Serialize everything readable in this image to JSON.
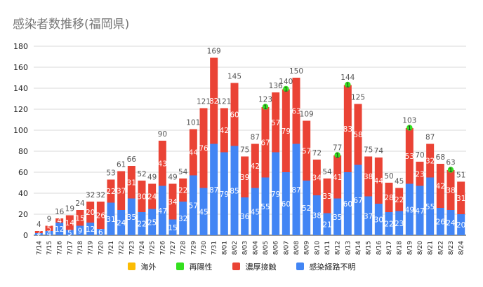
{
  "title": "感染者数推移(福岡県)",
  "chart_data": {
    "type": "bar",
    "stacked": true,
    "title": "感染者数推移(福岡県)",
    "ylim": [
      0,
      180
    ],
    "yticks": [
      0,
      20,
      40,
      60,
      80,
      100,
      120,
      140,
      160,
      180
    ],
    "grid": true,
    "legend_position": "bottom",
    "categories": [
      "7/14",
      "7/15",
      "7/16",
      "7/17",
      "7/18",
      "7/19",
      "7/20",
      "7/21",
      "7/22",
      "7/23",
      "7/24",
      "7/25",
      "7/26",
      "7/27",
      "7/28",
      "7/29",
      "7/30",
      "7/31",
      "8/01",
      "8/02",
      "8/03",
      "8/04",
      "8/05",
      "8/06",
      "8/07",
      "8/08",
      "8/09",
      "8/10",
      "8/11",
      "8/12",
      "8/13",
      "8/14",
      "8/15",
      "8/16",
      "8/17",
      "8/18",
      "8/19",
      "8/20",
      "8/21",
      "8/22",
      "8/23",
      "8/24"
    ],
    "x_tick_labels": [
      "7/14",
      "7/15",
      "7/16",
      "7/17",
      "7/18",
      "7/19",
      "7/20",
      "7/21",
      "7/22",
      "7/23",
      "7/24",
      "7/25",
      "7/26",
      "7/27",
      "7/28",
      "7/29",
      "7/30",
      "7/31",
      "8/01",
      "8/02",
      "8/03",
      "8/04",
      "8/05",
      "8/06",
      "8/07",
      "8/08",
      "8/09",
      "8/10",
      "8/11",
      "8/12",
      "8/13",
      "8/14",
      "8/15",
      "8/16",
      "8/17",
      "8/18",
      "8/19",
      "8/20",
      "8/21",
      "8/22",
      "8/23",
      "8/24"
    ],
    "totals": [
      4,
      9,
      16,
      19,
      24,
      32,
      32,
      53,
      61,
      66,
      52,
      49,
      90,
      49,
      54,
      101,
      121,
      169,
      121,
      145,
      75,
      87,
      123,
      136,
      140,
      150,
      109,
      72,
      54,
      77,
      144,
      125,
      75,
      74,
      50,
      45,
      103,
      70,
      87,
      68,
      63,
      51
    ],
    "series": [
      {
        "name": "海外",
        "color": "#fbbc04",
        "values": [
          0,
          0,
          0,
          0,
          0,
          0,
          0,
          0,
          0,
          0,
          0,
          0,
          0,
          0,
          0,
          0,
          0,
          0,
          0,
          0,
          0,
          0,
          0,
          0,
          0,
          0,
          0,
          0,
          0,
          0,
          0,
          0,
          0,
          0,
          0,
          0,
          0,
          0,
          0,
          0,
          0,
          0
        ]
      },
      {
        "name": "再陽性",
        "color": "#34e01f",
        "values": [
          0,
          0,
          0,
          0,
          0,
          0,
          0,
          0,
          0,
          0,
          0,
          0,
          0,
          0,
          0,
          0,
          0,
          0,
          0,
          0,
          0,
          0,
          1,
          0,
          1,
          0,
          0,
          0,
          0,
          1,
          1,
          0,
          0,
          0,
          0,
          0,
          1,
          0,
          0,
          0,
          1,
          0
        ]
      },
      {
        "name": "濃厚接触",
        "color": "#ea4335",
        "values": [
          2,
          5,
          4,
          14,
          15,
          20,
          26,
          22,
          37,
          31,
          30,
          24,
          43,
          34,
          22,
          44,
          76,
          82,
          42,
          60,
          39,
          42,
          67,
          57,
          79,
          63,
          57,
          34,
          33,
          41,
          83,
          58,
          38,
          44,
          28,
          22,
          53,
          23,
          32,
          42,
          38,
          31
        ]
      },
      {
        "name": "感染経路不明",
        "color": "#4285f4",
        "values": [
          2,
          4,
          12,
          5,
          9,
          12,
          6,
          31,
          24,
          35,
          22,
          25,
          47,
          15,
          32,
          57,
          45,
          87,
          79,
          85,
          36,
          45,
          55,
          79,
          60,
          87,
          52,
          38,
          21,
          35,
          60,
          67,
          37,
          30,
          22,
          23,
          49,
          47,
          55,
          26,
          24,
          20
        ]
      }
    ]
  }
}
